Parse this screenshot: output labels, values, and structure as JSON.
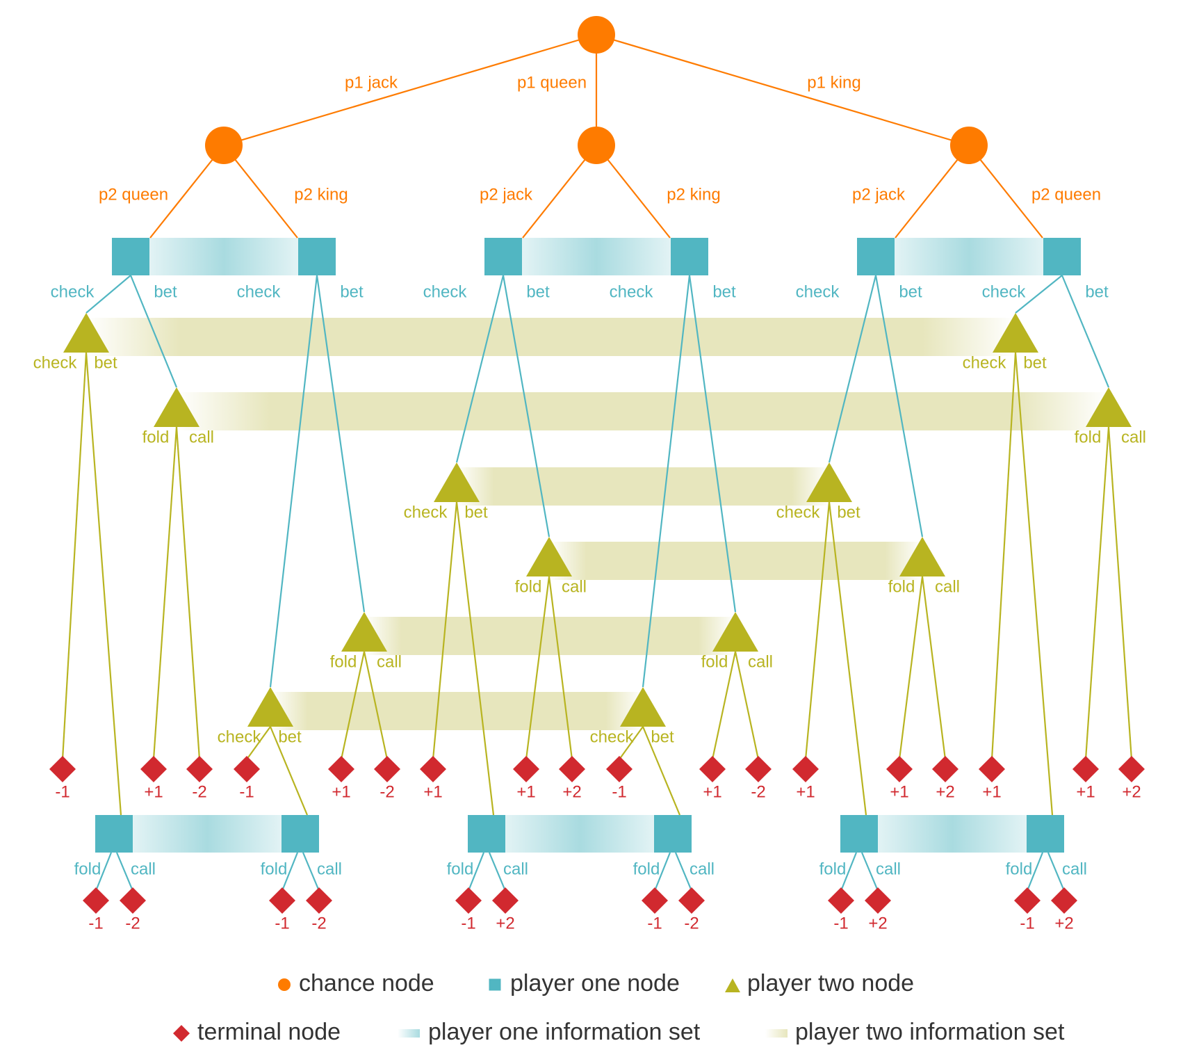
{
  "colors": {
    "chance": "#fe7b00",
    "player_one": "#51b6c2",
    "player_one_light": "#a9dbe0",
    "player_two": "#b8b421",
    "player_two_band": "#e7e6bd",
    "terminal": "#d1292f"
  },
  "diagram": {
    "root": {
      "card_labels": [
        "p1 jack",
        "p1 queen",
        "p1 king"
      ],
      "children": [
        {
          "p2_labels": [
            "p2 queen",
            "p2 king"
          ],
          "p1_actions": [
            "check",
            "bet",
            "check",
            "bet"
          ],
          "p2_after_check": [
            {
              "actions": [
                "check",
                "bet"
              ],
              "check_payoff": "-1"
            },
            {
              "actions": [
                "check",
                "bet"
              ],
              "check_payoff": "-1"
            }
          ],
          "p2_after_bet": [
            {
              "actions": [
                "fold",
                "call"
              ],
              "payoffs": [
                "+1",
                "-2"
              ]
            },
            {
              "actions": [
                "fold",
                "call"
              ],
              "payoffs": [
                "+1",
                "-2"
              ]
            }
          ],
          "bottom": {
            "actions": [
              "fold",
              "call",
              "fold",
              "call"
            ],
            "payoffs": [
              "-1",
              "-2",
              "-1",
              "-2"
            ]
          }
        },
        {
          "p2_labels": [
            "p2 jack",
            "p2 king"
          ],
          "p1_actions": [
            "check",
            "bet",
            "check",
            "bet"
          ],
          "p2_after_check": [
            {
              "actions": [
                "check",
                "bet"
              ],
              "check_payoff": "+1"
            },
            {
              "actions": [
                "check",
                "bet"
              ],
              "check_payoff": "-1"
            }
          ],
          "p2_after_bet": [
            {
              "actions": [
                "fold",
                "call"
              ],
              "payoffs": [
                "+1",
                "+2"
              ]
            },
            {
              "actions": [
                "fold",
                "call"
              ],
              "payoffs": [
                "+1",
                "-2"
              ]
            }
          ],
          "bottom": {
            "actions": [
              "fold",
              "call",
              "fold",
              "call"
            ],
            "payoffs": [
              "-1",
              "+2",
              "-1",
              "-2"
            ]
          }
        },
        {
          "p2_labels": [
            "p2 jack",
            "p2 queen"
          ],
          "p1_actions": [
            "check",
            "bet",
            "check",
            "bet"
          ],
          "p2_after_check": [
            {
              "actions": [
                "check",
                "bet"
              ],
              "check_payoff": "+1"
            },
            {
              "actions": [
                "check",
                "bet"
              ],
              "check_payoff": "+1"
            }
          ],
          "p2_after_bet": [
            {
              "actions": [
                "fold",
                "call"
              ],
              "payoffs": [
                "+1",
                "+2"
              ]
            },
            {
              "actions": [
                "fold",
                "call"
              ],
              "payoffs": [
                "+1",
                "+2"
              ]
            }
          ],
          "bottom": {
            "actions": [
              "fold",
              "call",
              "fold",
              "call"
            ],
            "payoffs": [
              "-1",
              "+2",
              "-1",
              "+2"
            ]
          }
        }
      ]
    }
  },
  "legend": {
    "chance": "chance node",
    "player_one": "player one node",
    "player_two": "player two node",
    "terminal": "terminal node",
    "p1_infoset": "player one information set",
    "p2_infoset": "player two information set"
  }
}
